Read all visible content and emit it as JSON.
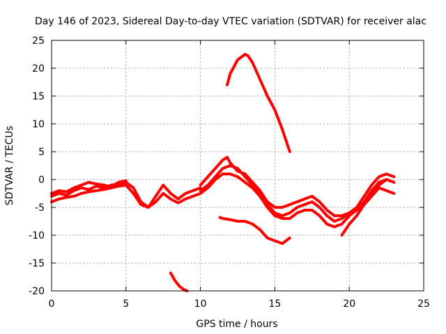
{
  "chart_data": {
    "type": "line",
    "title": "Day 146 of 2023, Sidereal Day-to-day VTEC variation (SDTVAR) for receiver alac",
    "xlabel": "GPS time / hours",
    "ylabel": "SDTVAR / TECUs",
    "xlim": [
      0,
      25
    ],
    "ylim": [
      -20,
      25
    ],
    "xticks": [
      0,
      5,
      10,
      15,
      20,
      25
    ],
    "yticks": [
      -20,
      -15,
      -10,
      -5,
      0,
      5,
      10,
      15,
      20,
      25
    ],
    "xtick_labels": [
      "0",
      "5",
      "10",
      "15",
      "20",
      "25"
    ],
    "ytick_labels": [
      "-20",
      "-15",
      "-10",
      "-5",
      "0",
      "5",
      "10",
      "15",
      "20",
      "25"
    ],
    "grid": true,
    "line_color": "#ff0000",
    "series": [
      {
        "name": "track-1",
        "x": [
          0,
          0.5,
          1,
          1.5,
          2,
          2.5,
          3,
          3.5,
          4,
          4.5,
          5,
          5.5,
          6,
          6.5,
          7,
          7.5,
          8,
          8.5,
          9,
          9.5,
          10
        ],
        "y": [
          -3,
          -2.5,
          -2.8,
          -2,
          -1.5,
          -1.8,
          -1.2,
          -1.5,
          -1,
          -0.8,
          -0.5,
          -1.5,
          -4,
          -5,
          -3,
          -1,
          -2.5,
          -3.5,
          -2.5,
          -2,
          -1.5
        ]
      },
      {
        "name": "track-2",
        "x": [
          0,
          0.5,
          1,
          1.5,
          2,
          2.5,
          3,
          3.5,
          4,
          4.5,
          5,
          5.5,
          6,
          6.5,
          7,
          7.5,
          8,
          8.5,
          9,
          9.5,
          10
        ],
        "y": [
          -4,
          -3.5,
          -3.2,
          -3,
          -2.5,
          -2.2,
          -2,
          -1.8,
          -1.5,
          -1.2,
          -1,
          -2.5,
          -4.5,
          -5,
          -4,
          -2.5,
          -3.5,
          -4.2,
          -3.5,
          -3,
          -2.5
        ]
      },
      {
        "name": "track-3",
        "x": [
          0,
          0.5,
          1,
          1.5,
          2,
          2.5,
          3,
          3.5,
          4,
          4.5,
          5
        ],
        "y": [
          -2.5,
          -2,
          -2.2,
          -1.5,
          -1,
          -0.5,
          -0.8,
          -1,
          -1.3,
          -0.5,
          -0.2
        ]
      },
      {
        "name": "track-4",
        "x": [
          10,
          10.5,
          11,
          11.5,
          11.8,
          12,
          12.5,
          13,
          13.5,
          14,
          14.5,
          15,
          15.5,
          16,
          16.5,
          17,
          17.5,
          18,
          18.5,
          19,
          19.5,
          20,
          20.5,
          21,
          21.5,
          22,
          22.5,
          23
        ],
        "y": [
          -1,
          0.5,
          2,
          3.5,
          4,
          3,
          1.5,
          1,
          -0.5,
          -2,
          -4,
          -5,
          -5,
          -4.5,
          -4,
          -3.5,
          -3,
          -4,
          -5.5,
          -6.5,
          -6.5,
          -6,
          -5,
          -3,
          -1,
          0.5,
          1,
          0.5
        ]
      },
      {
        "name": "track-5",
        "x": [
          10,
          10.5,
          11,
          11.5,
          12,
          12.5,
          13,
          13.5,
          14,
          14.5,
          15,
          15.5,
          16,
          16.5,
          17,
          17.5,
          18,
          18.5,
          19,
          19.5,
          20,
          20.5,
          21,
          21.5,
          22,
          22.5,
          23
        ],
        "y": [
          -2,
          -1,
          0.5,
          2,
          2.5,
          2,
          0.5,
          -1,
          -2.5,
          -4.5,
          -6,
          -6.5,
          -6,
          -5,
          -4.5,
          -4,
          -5,
          -6.5,
          -7.5,
          -7,
          -6,
          -5.5,
          -4,
          -2,
          -0.5,
          0,
          -0.5
        ]
      },
      {
        "name": "track-6",
        "x": [
          10,
          10.5,
          11,
          11.5,
          12,
          12.5,
          13,
          13.5,
          14,
          14.5,
          15,
          15.5,
          16,
          16.5,
          17,
          17.5,
          18,
          18.5,
          19,
          19.5,
          20,
          20.5,
          21,
          21.5,
          22,
          22.5,
          23
        ],
        "y": [
          -2.5,
          -1.5,
          0,
          1,
          1,
          0.5,
          -0.5,
          -1.5,
          -3,
          -5,
          -6.5,
          -7,
          -7,
          -6,
          -5.5,
          -5.5,
          -6.5,
          -8,
          -8.5,
          -8,
          -6.5,
          -5.5,
          -4.5,
          -3,
          -1.5,
          -2,
          -2.5
        ]
      },
      {
        "name": "track-7",
        "x": [
          19.5,
          20,
          20.5,
          21,
          21.5,
          22,
          22.5
        ],
        "y": [
          -10,
          -8,
          -6.5,
          -4.5,
          -2.5,
          -1,
          0
        ]
      },
      {
        "name": "track-8",
        "x": [
          11.8,
          12,
          12.5,
          13,
          13.2,
          13.5,
          14,
          14.5,
          15,
          15.5,
          16
        ],
        "y": [
          17,
          19,
          21.5,
          22.5,
          22.2,
          21,
          18,
          15,
          12.5,
          9,
          5
        ]
      },
      {
        "name": "track-9",
        "x": [
          11.3,
          11.5,
          12,
          12.5,
          13,
          13.5,
          14,
          14.5,
          15,
          15.5,
          16
        ],
        "y": [
          -6.8,
          -7,
          -7.2,
          -7.5,
          -7.5,
          -8,
          -9,
          -10.5,
          -11,
          -11.5,
          -10.5
        ]
      },
      {
        "name": "track-10",
        "x": [
          8,
          8.3,
          8.6,
          8.9,
          9.1
        ],
        "y": [
          -16.8,
          -18.2,
          -19.2,
          -19.8,
          -20
        ]
      }
    ]
  }
}
